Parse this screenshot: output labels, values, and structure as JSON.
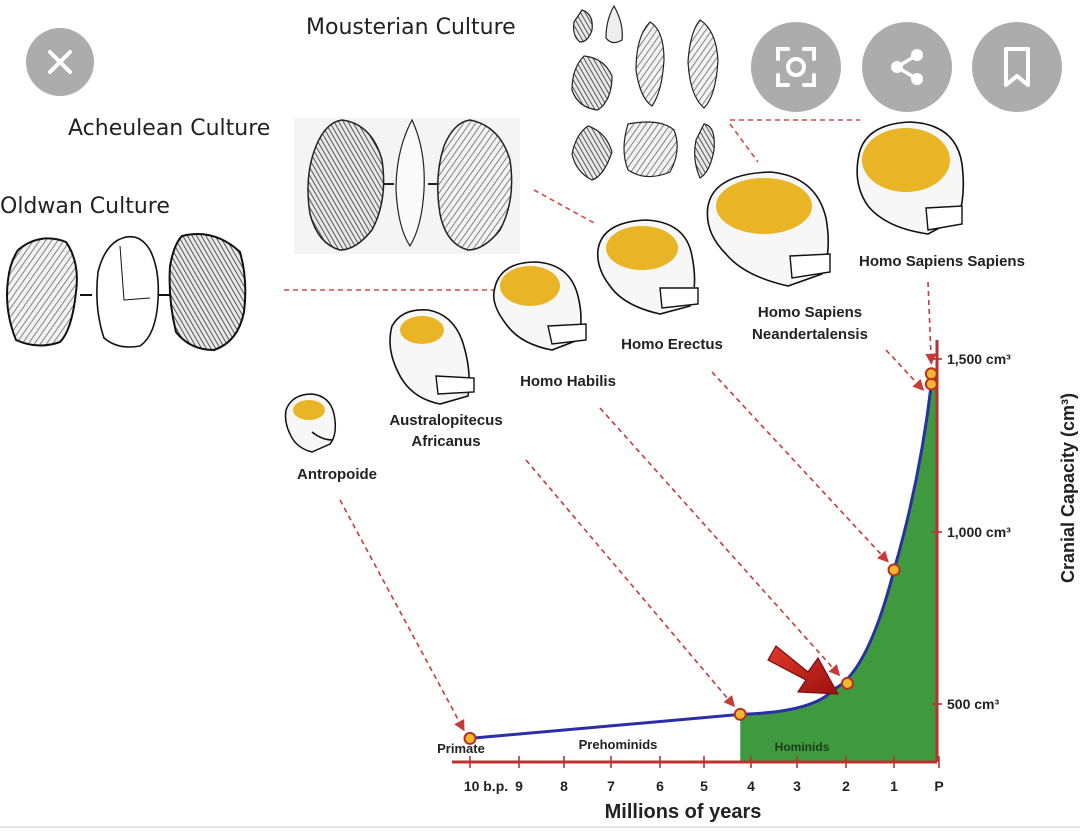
{
  "toolbar": {
    "close_icon": "close-icon",
    "lens_icon": "lens-scan-icon",
    "share_icon": "share-icon",
    "bookmark_icon": "bookmark-icon"
  },
  "cultures": {
    "oldwan": "Oldwan Culture",
    "acheulean": "Acheulean Culture",
    "mousterian": "Mousterian Culture"
  },
  "species": {
    "antropoide": "Antropoide",
    "australopitecus_1": "Australopitecus",
    "australopitecus_2": "Africanus",
    "habilis": "Homo Habilis",
    "erectus": "Homo Erectus",
    "neandertal_1": "Homo Sapiens",
    "neandertal_2": "Neandertalensis",
    "sapiens": "Homo Sapiens Sapiens"
  },
  "chart_data": {
    "type": "area",
    "xlabel": "Millions of years",
    "ylabel": "Cranial Capacity (cm³)",
    "x_ticks": [
      "10 b.p.",
      "9",
      "8",
      "7",
      "6",
      "5",
      "4",
      "3",
      "2",
      "1",
      "P"
    ],
    "y_ticks": [
      "500 cm³",
      "1,000 cm³",
      "1,500 cm³"
    ],
    "regions": [
      "Primate",
      "Prehominids",
      "Hominids"
    ],
    "points": [
      {
        "x": 10,
        "y": 400,
        "label": "Antropoide"
      },
      {
        "x": 4.2,
        "y": 470,
        "label": "Australopitecus Africanus"
      },
      {
        "x": 1.9,
        "y": 560,
        "label": "Homo Habilis"
      },
      {
        "x": 0.9,
        "y": 890,
        "label": "Homo Erectus"
      },
      {
        "x": 0.1,
        "y": 1430,
        "label": "Homo Sapiens Neandertalensis"
      },
      {
        "x": 0.1,
        "y": 1460,
        "label": "Homo Sapiens Sapiens"
      }
    ],
    "colors": {
      "curve": "#2a2fa8",
      "area": "#3f9a3f",
      "axis": "#b83232",
      "point_fill": "#f2b630",
      "brain": "#e9b527",
      "arrow": "#c81e1e"
    }
  }
}
